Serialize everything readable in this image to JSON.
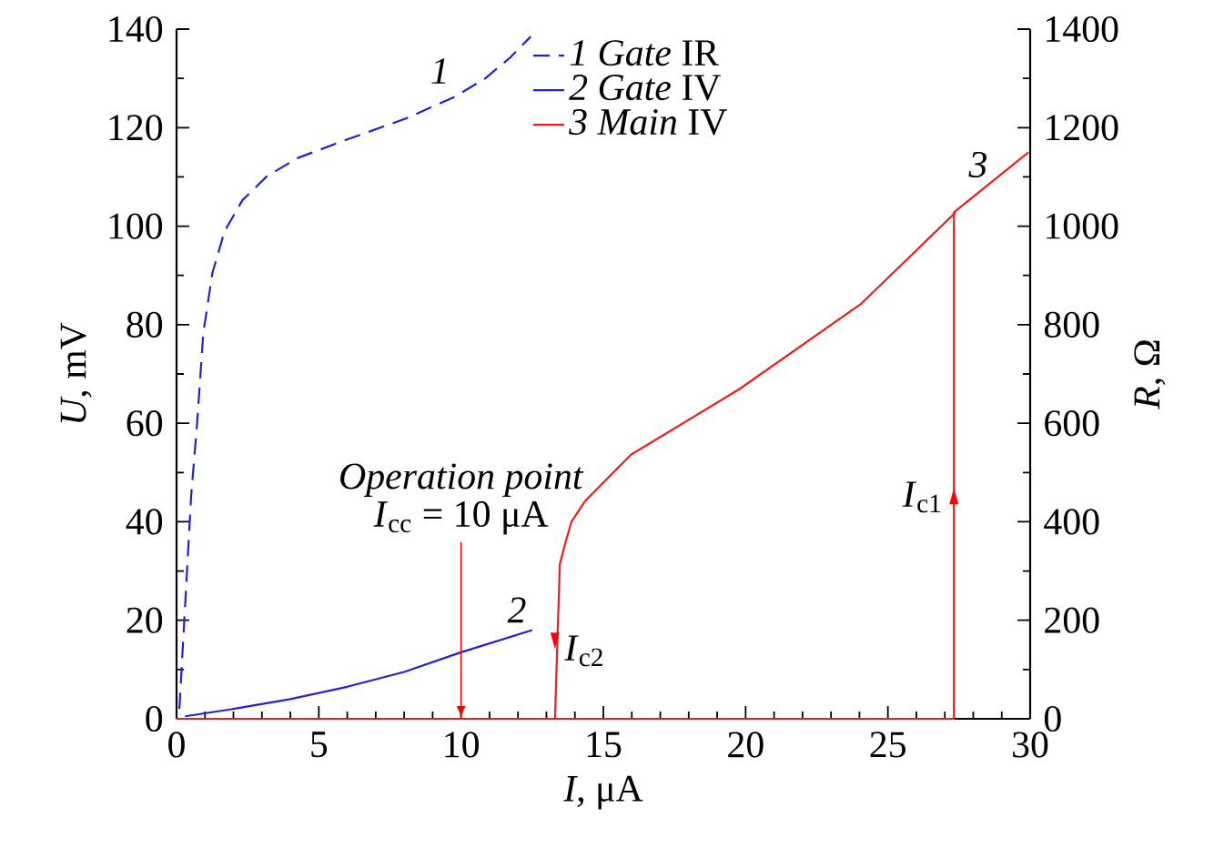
{
  "chart_data": {
    "type": "line",
    "xlabel": "*I*, μA",
    "ylabel": "*U*, mV",
    "y2label": "*R*, Ω",
    "xlim": [
      0,
      30
    ],
    "xticks": [
      0,
      5,
      10,
      15,
      20,
      25,
      30
    ],
    "ylim": [
      0,
      140
    ],
    "yticks": [
      0,
      20,
      40,
      60,
      80,
      100,
      120,
      140
    ],
    "y2lim": [
      0,
      1400
    ],
    "y2ticks": [
      0,
      200,
      400,
      600,
      800,
      1000,
      1200,
      1400
    ],
    "legend": "top",
    "grid": false,
    "series": [
      {
        "name": "*1 Gate* IR",
        "color": "#2020d8",
        "axis": "y2",
        "line_style": "dashed",
        "x": [
          0.1,
          0.3,
          0.51,
          0.72,
          0.94,
          1.26,
          1.69,
          2.32,
          3.17,
          4.24,
          5.95,
          8.08,
          9.79,
          10.85,
          11.7,
          12.45
        ],
        "values": [
          20,
          229,
          450,
          598,
          783,
          905,
          990,
          1053,
          1101,
          1138,
          1175,
          1219,
          1263,
          1300,
          1341,
          1385
        ]
      },
      {
        "name": "*2 Gate* IV",
        "color": "#2020d8",
        "axis": "y",
        "line_style": "solid",
        "x": [
          0.3,
          2,
          4,
          6,
          8,
          10,
          12.5
        ],
        "values": [
          0.5,
          2,
          4,
          6.5,
          9.5,
          13.5,
          18
        ]
      },
      {
        "name": "*3 Main* IV",
        "color": "#ee1c1c",
        "axis": "y",
        "line_style": "solid",
        "x": [
          0,
          27.32,
          27.32,
          29.94
        ],
        "values": [
          0,
          0,
          102.8,
          115
        ]
      },
      {
        "color": "#ee1c1c",
        "axis": "y",
        "line_style": "solid",
        "x": [
          13.3,
          13.47,
          13.63,
          13.88,
          14.37,
          15.97,
          19.8,
          24.07,
          27.38
        ],
        "values": [
          0,
          31.4,
          35,
          40,
          44.3,
          53.6,
          67,
          84.3,
          102.8
        ]
      }
    ],
    "annotations": [
      {
        "text": "*Operation point*",
        "x": 10,
        "y": 0
      },
      "*I*$_{cc}$ = 10 μA",
      {
        "text": "*1*",
        "x": 9.79,
        "y": 126.3
      },
      {
        "text": "*2*",
        "x": 12.5,
        "y": 18
      },
      {
        "text": "*3*",
        "x": 27.38,
        "y": 102.8
      },
      {
        "text": "*I*$_{c2}$",
        "x": 13.3,
        "y": 16
      },
      {
        "text": "*I*$_{c1}$",
        "x": 27.32,
        "y": 45
      }
    ]
  }
}
